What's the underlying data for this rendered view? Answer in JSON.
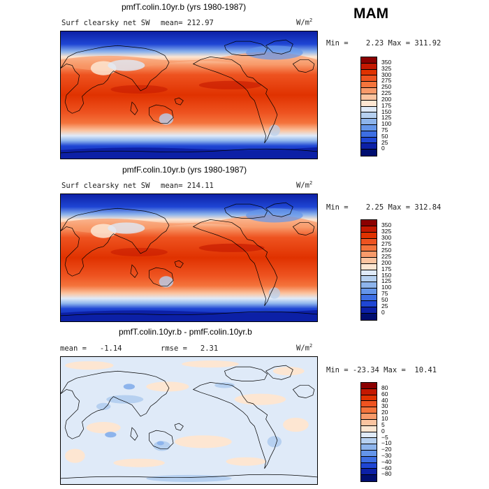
{
  "season": "MAM",
  "panels": [
    {
      "title": "pmfT.colin.10yr.b (yrs 1980-1987)",
      "left_label": "Surf clearsky net SW",
      "mean_label": "mean= 212.97",
      "units": "W/m",
      "units_exp": "2",
      "stats": "Min =    2.23 Max = 311.92",
      "legend_values": [
        "350",
        "325",
        "300",
        "275",
        "250",
        "225",
        "200",
        "175",
        "150",
        "125",
        "100",
        "75",
        "50",
        "25",
        "0"
      ],
      "legend_colors": [
        "#8b0000",
        "#c41800",
        "#e03200",
        "#ee5320",
        "#f4743c",
        "#f89a6a",
        "#fbc4a0",
        "#fde6d2",
        "#dfeaf8",
        "#b6d0f0",
        "#8db4ec",
        "#6495ea",
        "#3d6ee3",
        "#1f46d4",
        "#0c20a6",
        "#000e70"
      ]
    },
    {
      "title": "pmfF.colin.10yr.b (yrs 1980-1987)",
      "left_label": "Surf clearsky net SW",
      "mean_label": "mean= 214.11",
      "units": "W/m",
      "units_exp": "2",
      "stats": "Min =    2.25 Max = 312.84",
      "legend_values": [
        "350",
        "325",
        "300",
        "275",
        "250",
        "225",
        "200",
        "175",
        "150",
        "125",
        "100",
        "75",
        "50",
        "25",
        "0"
      ],
      "legend_colors": [
        "#8b0000",
        "#c41800",
        "#e03200",
        "#ee5320",
        "#f4743c",
        "#f89a6a",
        "#fbc4a0",
        "#fde6d2",
        "#dfeaf8",
        "#b6d0f0",
        "#8db4ec",
        "#6495ea",
        "#3d6ee3",
        "#1f46d4",
        "#0c20a6",
        "#000e70"
      ]
    },
    {
      "title": "pmfT.colin.10yr.b - pmfF.colin.10yr.b",
      "left_label": "mean =   -1.14",
      "mean_label": "rmse =   2.31",
      "units": "W/m",
      "units_exp": "2",
      "stats": "Min = -23.34 Max =  10.41",
      "legend_values": [
        "80",
        "60",
        "40",
        "30",
        "20",
        "10",
        "5",
        "0",
        "−5",
        "−10",
        "−20",
        "−30",
        "−40",
        "−60",
        "−80"
      ],
      "legend_colors": [
        "#8b0000",
        "#c41800",
        "#e03200",
        "#ee5320",
        "#f4743c",
        "#f89a6a",
        "#fbc4a0",
        "#fde6d2",
        "#dfeaf8",
        "#b6d0f0",
        "#8db4ec",
        "#6495ea",
        "#3d6ee3",
        "#1f46d4",
        "#0c20a6",
        "#000e70"
      ]
    }
  ]
}
